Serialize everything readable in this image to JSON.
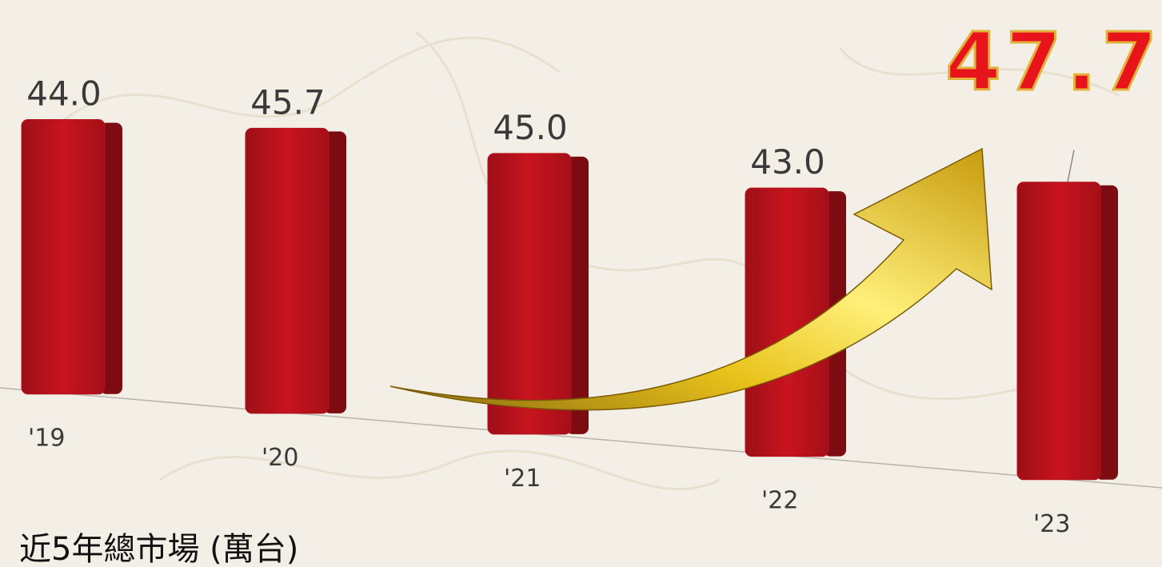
{
  "chart_data": {
    "type": "bar3d",
    "title": "近5年總市場 (萬台)",
    "categories": [
      "'19",
      "'20",
      "'21",
      "'22",
      "'23"
    ],
    "values": [
      44.0,
      45.7,
      45.0,
      43.0,
      47.7
    ],
    "value_labels": [
      "44.0",
      "45.7",
      "45.0",
      "43.0",
      "47.7"
    ],
    "color": "#b5121b",
    "label_color": "#3a3a3a",
    "highlight": "last",
    "highlight_color": "#e8141c"
  }
}
